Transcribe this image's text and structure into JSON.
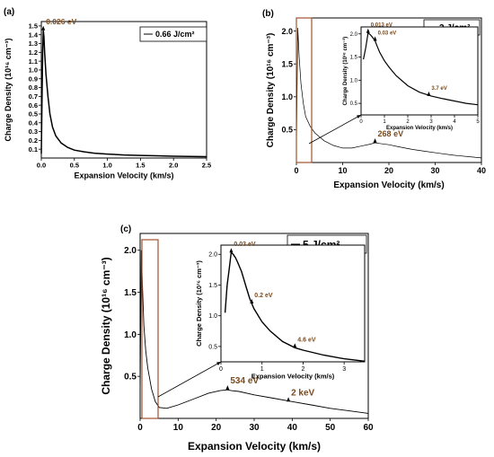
{
  "chart_data": [
    {
      "id": "a",
      "type": "line",
      "panel_label": "(a)",
      "legend": "0.66 J/cm²",
      "xlabel": "Expansion Velocity (km/s)",
      "ylabel": "Charge Density (10¹⁶ cm⁻³)",
      "xlim": [
        0,
        2.5
      ],
      "ylim": [
        0,
        1.55
      ],
      "xticks": [
        "0.0",
        "0.5",
        "1.0",
        "1.5",
        "2.0",
        "2.5"
      ],
      "yticks": [
        "0.1",
        "0.2",
        "0.3",
        "0.4",
        "0.5",
        "0.6",
        "0.7",
        "0.8",
        "0.9",
        "1.0",
        "1.1",
        "1.2",
        "1.3",
        "1.4",
        "1.5"
      ],
      "x": [
        0.0,
        0.01,
        0.02,
        0.03,
        0.04,
        0.05,
        0.07,
        0.1,
        0.13,
        0.17,
        0.22,
        0.3,
        0.4,
        0.5,
        0.65,
        0.8,
        1.0,
        1.25,
        1.5,
        1.75,
        2.0,
        2.25,
        2.5
      ],
      "y": [
        0.05,
        0.6,
        1.2,
        1.45,
        1.38,
        1.2,
        0.95,
        0.7,
        0.5,
        0.35,
        0.25,
        0.17,
        0.12,
        0.09,
        0.07,
        0.055,
        0.045,
        0.035,
        0.03,
        0.025,
        0.02,
        0.018,
        0.015
      ],
      "annotations": [
        {
          "text": "0.026 eV",
          "x": 0.03,
          "y": 1.45
        }
      ]
    },
    {
      "id": "b",
      "type": "line",
      "panel_label": "(b)",
      "legend": "3 J/cm²",
      "xlabel": "Expansion Velocity (km/s)",
      "ylabel": "Charge Density (10¹⁶ cm⁻³)",
      "xlim": [
        0,
        40
      ],
      "ylim": [
        0,
        2.2
      ],
      "xticks": [
        "0",
        "10",
        "20",
        "30",
        "40"
      ],
      "yticks": [
        "0.5",
        "1.0",
        "1.5",
        "2.0"
      ],
      "x": [
        0,
        0.3,
        0.6,
        1,
        1.5,
        2,
        3,
        4,
        6,
        8,
        10,
        12,
        14,
        16,
        17,
        18,
        20,
        22,
        25,
        28,
        31,
        34,
        37,
        40
      ],
      "y": [
        0.2,
        2.05,
        1.6,
        1.2,
        0.9,
        0.7,
        0.55,
        0.45,
        0.33,
        0.26,
        0.22,
        0.22,
        0.25,
        0.28,
        0.3,
        0.29,
        0.27,
        0.24,
        0.2,
        0.17,
        0.14,
        0.11,
        0.09,
        0.07
      ],
      "annotations": [
        {
          "text": "268 eV",
          "x": 17,
          "y": 0.3
        }
      ],
      "inset": {
        "xlabel": "Expansion Velocity (km/s)",
        "ylabel": "Charge Density (10¹⁶ cm⁻³)",
        "xlim": [
          0,
          5
        ],
        "ylim": [
          0.25,
          2.15
        ],
        "xticks": [
          "0",
          "1",
          "2",
          "3",
          "4",
          "5"
        ],
        "yticks": [
          "0.5",
          "1.0",
          "1.5",
          "2.0"
        ],
        "x": [
          0.1,
          0.2,
          0.3,
          0.4,
          0.5,
          0.6,
          0.7,
          0.8,
          1.0,
          1.2,
          1.5,
          2.0,
          2.5,
          3.0,
          3.5,
          4.0,
          4.5,
          5.0
        ],
        "y": [
          1.45,
          1.7,
          2.02,
          1.98,
          1.92,
          1.85,
          1.72,
          1.6,
          1.42,
          1.28,
          1.1,
          0.88,
          0.74,
          0.66,
          0.6,
          0.55,
          0.5,
          0.47
        ],
        "annotations": [
          {
            "text": "0.013 eV",
            "x": 0.3,
            "y": 2.02
          },
          {
            "text": "0.03 eV",
            "x": 0.6,
            "y": 1.85
          },
          {
            "text": "3.7 eV",
            "x": 2.9,
            "y": 0.66
          }
        ]
      }
    },
    {
      "id": "c",
      "type": "line",
      "panel_label": "(c)",
      "legend": "5 J/cm²",
      "xlabel": "Expansion Velocity (km/s)",
      "ylabel": "Charge Density (10¹⁶ cm⁻³)",
      "xlim": [
        0,
        60
      ],
      "ylim": [
        0,
        2.2
      ],
      "xticks": [
        "0",
        "10",
        "20",
        "30",
        "40",
        "50",
        "60"
      ],
      "yticks": [
        "0.5",
        "1.0",
        "1.5",
        "2.0"
      ],
      "x": [
        0,
        0.3,
        0.6,
        1,
        1.5,
        2,
        3,
        4,
        5,
        7,
        10,
        14,
        18,
        21,
        23,
        24,
        26,
        30,
        35,
        40,
        45,
        50,
        55,
        60
      ],
      "y": [
        0.3,
        2.0,
        1.6,
        1.1,
        0.8,
        0.6,
        0.35,
        0.2,
        0.13,
        0.12,
        0.16,
        0.23,
        0.3,
        0.33,
        0.34,
        0.33,
        0.32,
        0.28,
        0.24,
        0.2,
        0.16,
        0.12,
        0.09,
        0.06
      ],
      "annotations": [
        {
          "text": "534 eV",
          "x": 23,
          "y": 0.34
        },
        {
          "text": "2 keV",
          "x": 39,
          "y": 0.2
        }
      ],
      "inset": {
        "xlabel": "Expansion Velocity (km/s)",
        "ylabel": "Charge Density (10¹⁶ cm⁻³)",
        "xlim": [
          0,
          3.5
        ],
        "ylim": [
          0.25,
          2.15
        ],
        "xticks": [
          "0",
          "1",
          "2",
          "3"
        ],
        "yticks": [
          "0.5",
          "1.0",
          "1.5",
          "2.0"
        ],
        "x": [
          0.1,
          0.15,
          0.2,
          0.25,
          0.3,
          0.35,
          0.4,
          0.5,
          0.6,
          0.7,
          0.8,
          1.0,
          1.2,
          1.5,
          1.8,
          2.0,
          2.5,
          3.0,
          3.5
        ],
        "y": [
          1.05,
          1.5,
          1.75,
          2.03,
          2.0,
          1.95,
          1.88,
          1.72,
          1.5,
          1.28,
          1.12,
          0.9,
          0.75,
          0.58,
          0.48,
          0.44,
          0.36,
          0.3,
          0.26
        ],
        "annotations": [
          {
            "text": "0.03 eV",
            "x": 0.25,
            "y": 2.03
          },
          {
            "text": "0.2 eV",
            "x": 0.75,
            "y": 1.2
          },
          {
            "text": "4.6 eV",
            "x": 1.8,
            "y": 0.48
          }
        ]
      }
    }
  ]
}
